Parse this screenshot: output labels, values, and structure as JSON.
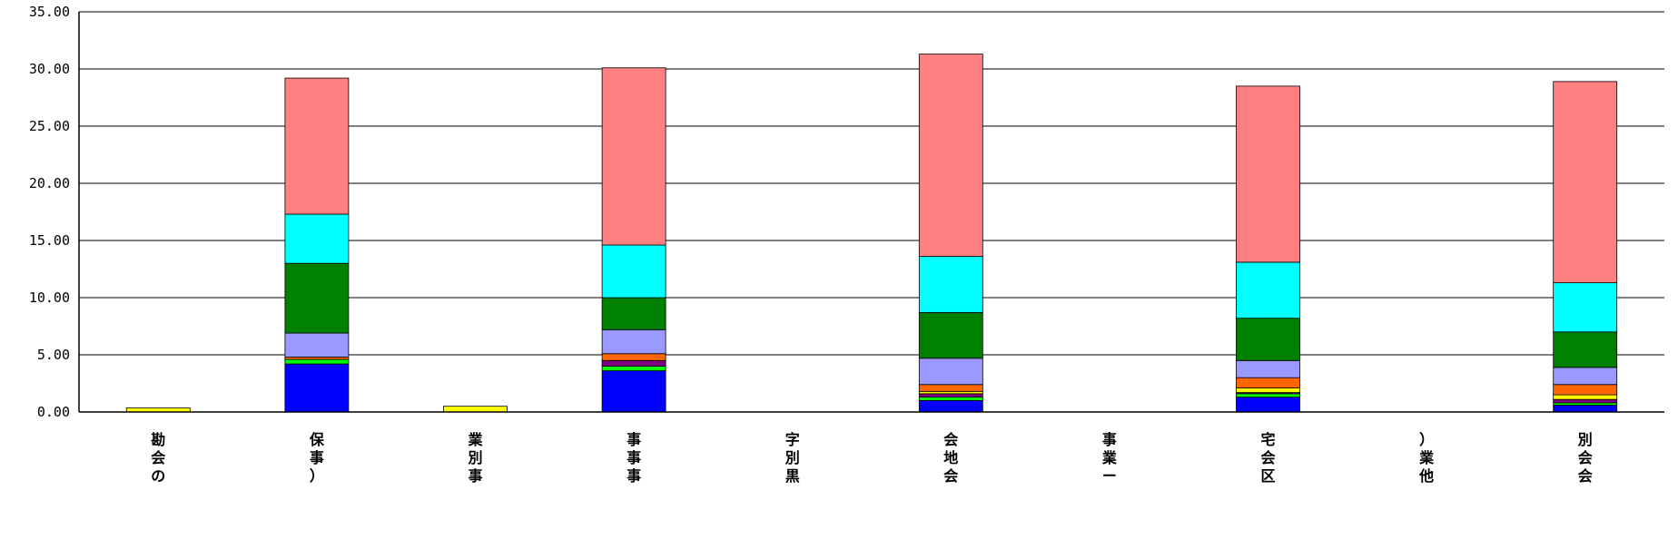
{
  "chart_data": {
    "type": "bar",
    "stacked": true,
    "title": "",
    "xlabel": "",
    "ylabel": "",
    "ylim": [
      0,
      35
    ],
    "y_ticks": [
      "0.00",
      "5.00",
      "10.00",
      "15.00",
      "20.00",
      "25.00",
      "30.00",
      "35.00"
    ],
    "grid": true,
    "legend": "none",
    "categories": [
      "勘会の",
      "保事）",
      "業別事",
      "事事事",
      "字別黒",
      "会地会",
      "事業ー",
      "宅会区",
      "）業他",
      "別会会"
    ],
    "series": [
      {
        "color": "#0000ff",
        "values": [
          0,
          4.2,
          0,
          3.6,
          0,
          1.0,
          0,
          1.3,
          0,
          0.6
        ]
      },
      {
        "color": "#00ff00",
        "values": [
          0,
          0.4,
          0,
          0.4,
          0,
          0.3,
          0,
          0.3,
          0,
          0.2
        ]
      },
      {
        "color": "#800080",
        "values": [
          0,
          0.0,
          0,
          0.5,
          0,
          0.3,
          0,
          0.1,
          0,
          0.3
        ]
      },
      {
        "color": "#ffff00",
        "values": [
          0.35,
          0.0,
          0.5,
          0.0,
          0,
          0.2,
          0,
          0.4,
          0,
          0.4
        ]
      },
      {
        "color": "#ff6600",
        "values": [
          0,
          0.2,
          0,
          0.6,
          0,
          0.6,
          0,
          0.9,
          0,
          0.9
        ]
      },
      {
        "color": "#9999ff",
        "values": [
          0,
          2.1,
          0,
          2.1,
          0,
          2.3,
          0,
          1.5,
          0,
          1.5
        ]
      },
      {
        "color": "#008000",
        "values": [
          0,
          6.1,
          0,
          2.8,
          0,
          4.0,
          0,
          3.7,
          0,
          3.1
        ]
      },
      {
        "color": "#00ffff",
        "values": [
          0,
          4.3,
          0,
          4.6,
          0,
          4.9,
          0,
          4.9,
          0,
          4.3
        ]
      },
      {
        "color": "#ff8080",
        "values": [
          0,
          11.9,
          0,
          15.5,
          0,
          17.7,
          0,
          15.4,
          0,
          17.6
        ]
      }
    ]
  }
}
